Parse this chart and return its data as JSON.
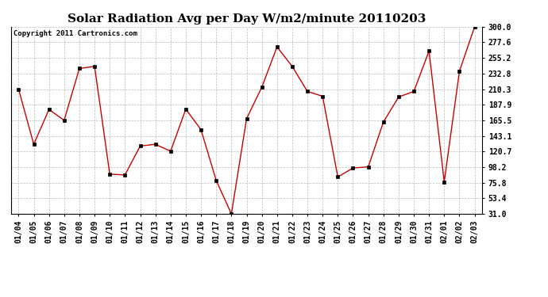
{
  "title": "Solar Radiation Avg per Day W/m2/minute 20110203",
  "copyright": "Copyright 2011 Cartronics.com",
  "labels": [
    "01/04",
    "01/05",
    "01/06",
    "01/07",
    "01/08",
    "01/09",
    "01/10",
    "01/11",
    "01/12",
    "01/13",
    "01/14",
    "01/15",
    "01/16",
    "01/17",
    "01/18",
    "01/19",
    "01/20",
    "01/21",
    "01/22",
    "01/23",
    "01/24",
    "01/25",
    "01/26",
    "01/27",
    "01/28",
    "01/29",
    "01/30",
    "01/31",
    "02/01",
    "02/02",
    "02/03"
  ],
  "values": [
    210.3,
    131.0,
    181.0,
    165.5,
    240.0,
    243.0,
    88.0,
    87.0,
    128.5,
    131.0,
    121.0,
    181.5,
    152.0,
    79.0,
    31.0,
    168.0,
    213.0,
    271.0,
    243.0,
    207.0,
    200.0,
    84.0,
    97.0,
    98.5,
    163.0,
    199.0,
    207.0,
    265.0,
    77.0,
    236.0,
    300.0
  ],
  "ylim": [
    31.0,
    300.0
  ],
  "yticks": [
    31.0,
    53.4,
    75.8,
    98.2,
    120.7,
    143.1,
    165.5,
    187.9,
    210.3,
    232.8,
    255.2,
    277.6,
    300.0
  ],
  "line_color": "#cc0000",
  "marker": "s",
  "marker_color": "#000000",
  "marker_size": 2.5,
  "bg_color": "#ffffff",
  "plot_bg_color": "#ffffff",
  "grid_color": "#aaaaaa",
  "title_fontsize": 11,
  "copyright_fontsize": 6.5,
  "tick_fontsize": 7,
  "ytick_fontsize": 7
}
